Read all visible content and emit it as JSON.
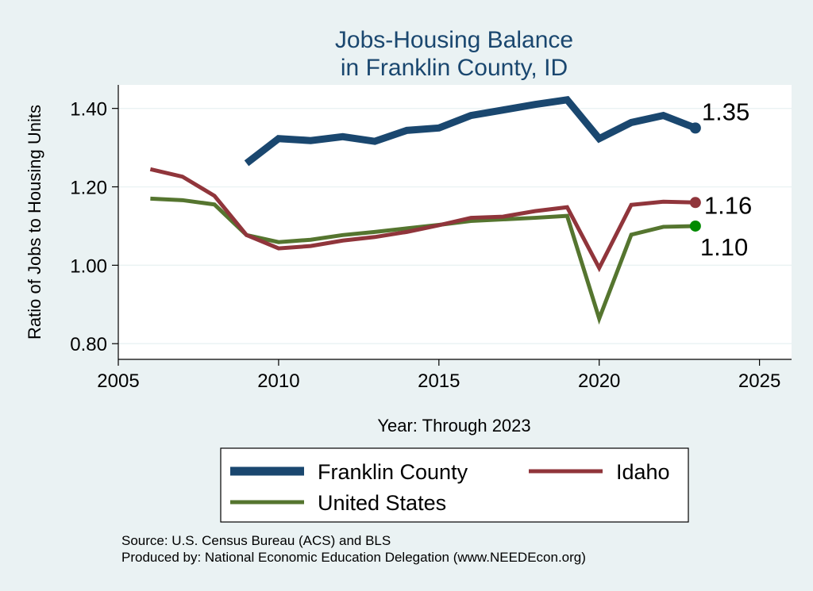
{
  "chart_data": {
    "type": "line",
    "title": [
      "Jobs-Housing Balance",
      "in Franklin County, ID"
    ],
    "xlabel": "Year: Through 2023",
    "ylabel": "Ratio of Jobs to Housing Units",
    "xlim": [
      2005,
      2026
    ],
    "ylim": [
      0.76,
      1.46
    ],
    "xticks": [
      2005,
      2010,
      2015,
      2020,
      2025
    ],
    "yticks": [
      0.8,
      1.0,
      1.2,
      1.4
    ],
    "ytick_labels": [
      "0.80",
      "1.00",
      "1.20",
      "1.40"
    ],
    "grid": true,
    "legend_position": "bottom",
    "series": [
      {
        "name": "Franklin County",
        "color": "#1a476f",
        "width": "thick",
        "x": [
          2009,
          2010,
          2011,
          2012,
          2013,
          2014,
          2015,
          2016,
          2017,
          2018,
          2019,
          2020,
          2021,
          2022,
          2023
        ],
        "values": [
          1.26,
          1.323,
          1.318,
          1.328,
          1.316,
          1.344,
          1.35,
          1.382,
          1.396,
          1.41,
          1.422,
          1.323,
          1.364,
          1.382,
          1.35
        ],
        "end_label": "1.35",
        "end_marker_color": "#1a476f"
      },
      {
        "name": "Idaho",
        "color": "#90353b",
        "width": "normal",
        "x": [
          2006,
          2007,
          2008,
          2009,
          2010,
          2011,
          2012,
          2013,
          2014,
          2015,
          2016,
          2017,
          2018,
          2019,
          2020,
          2021,
          2022,
          2023
        ],
        "values": [
          1.245,
          1.226,
          1.177,
          1.077,
          1.043,
          1.049,
          1.063,
          1.072,
          1.085,
          1.102,
          1.121,
          1.124,
          1.138,
          1.148,
          0.993,
          1.154,
          1.162,
          1.16
        ],
        "end_label": "1.16",
        "end_marker_color": "#90353b"
      },
      {
        "name": "United States",
        "color": "#55752f",
        "width": "normal",
        "x": [
          2006,
          2007,
          2008,
          2009,
          2010,
          2011,
          2012,
          2013,
          2014,
          2015,
          2016,
          2017,
          2018,
          2019,
          2020,
          2021,
          2022,
          2023
        ],
        "values": [
          1.17,
          1.166,
          1.155,
          1.077,
          1.059,
          1.065,
          1.077,
          1.085,
          1.094,
          1.103,
          1.113,
          1.117,
          1.121,
          1.126,
          0.864,
          1.078,
          1.098,
          1.1
        ],
        "end_label": "1.10",
        "end_marker_color": "#008a00"
      }
    ],
    "notes": [
      "Source: U.S. Census Bureau (ACS) and BLS",
      "Produced by: National Economic Education Delegation (www.NEEDEcon.org)"
    ]
  }
}
